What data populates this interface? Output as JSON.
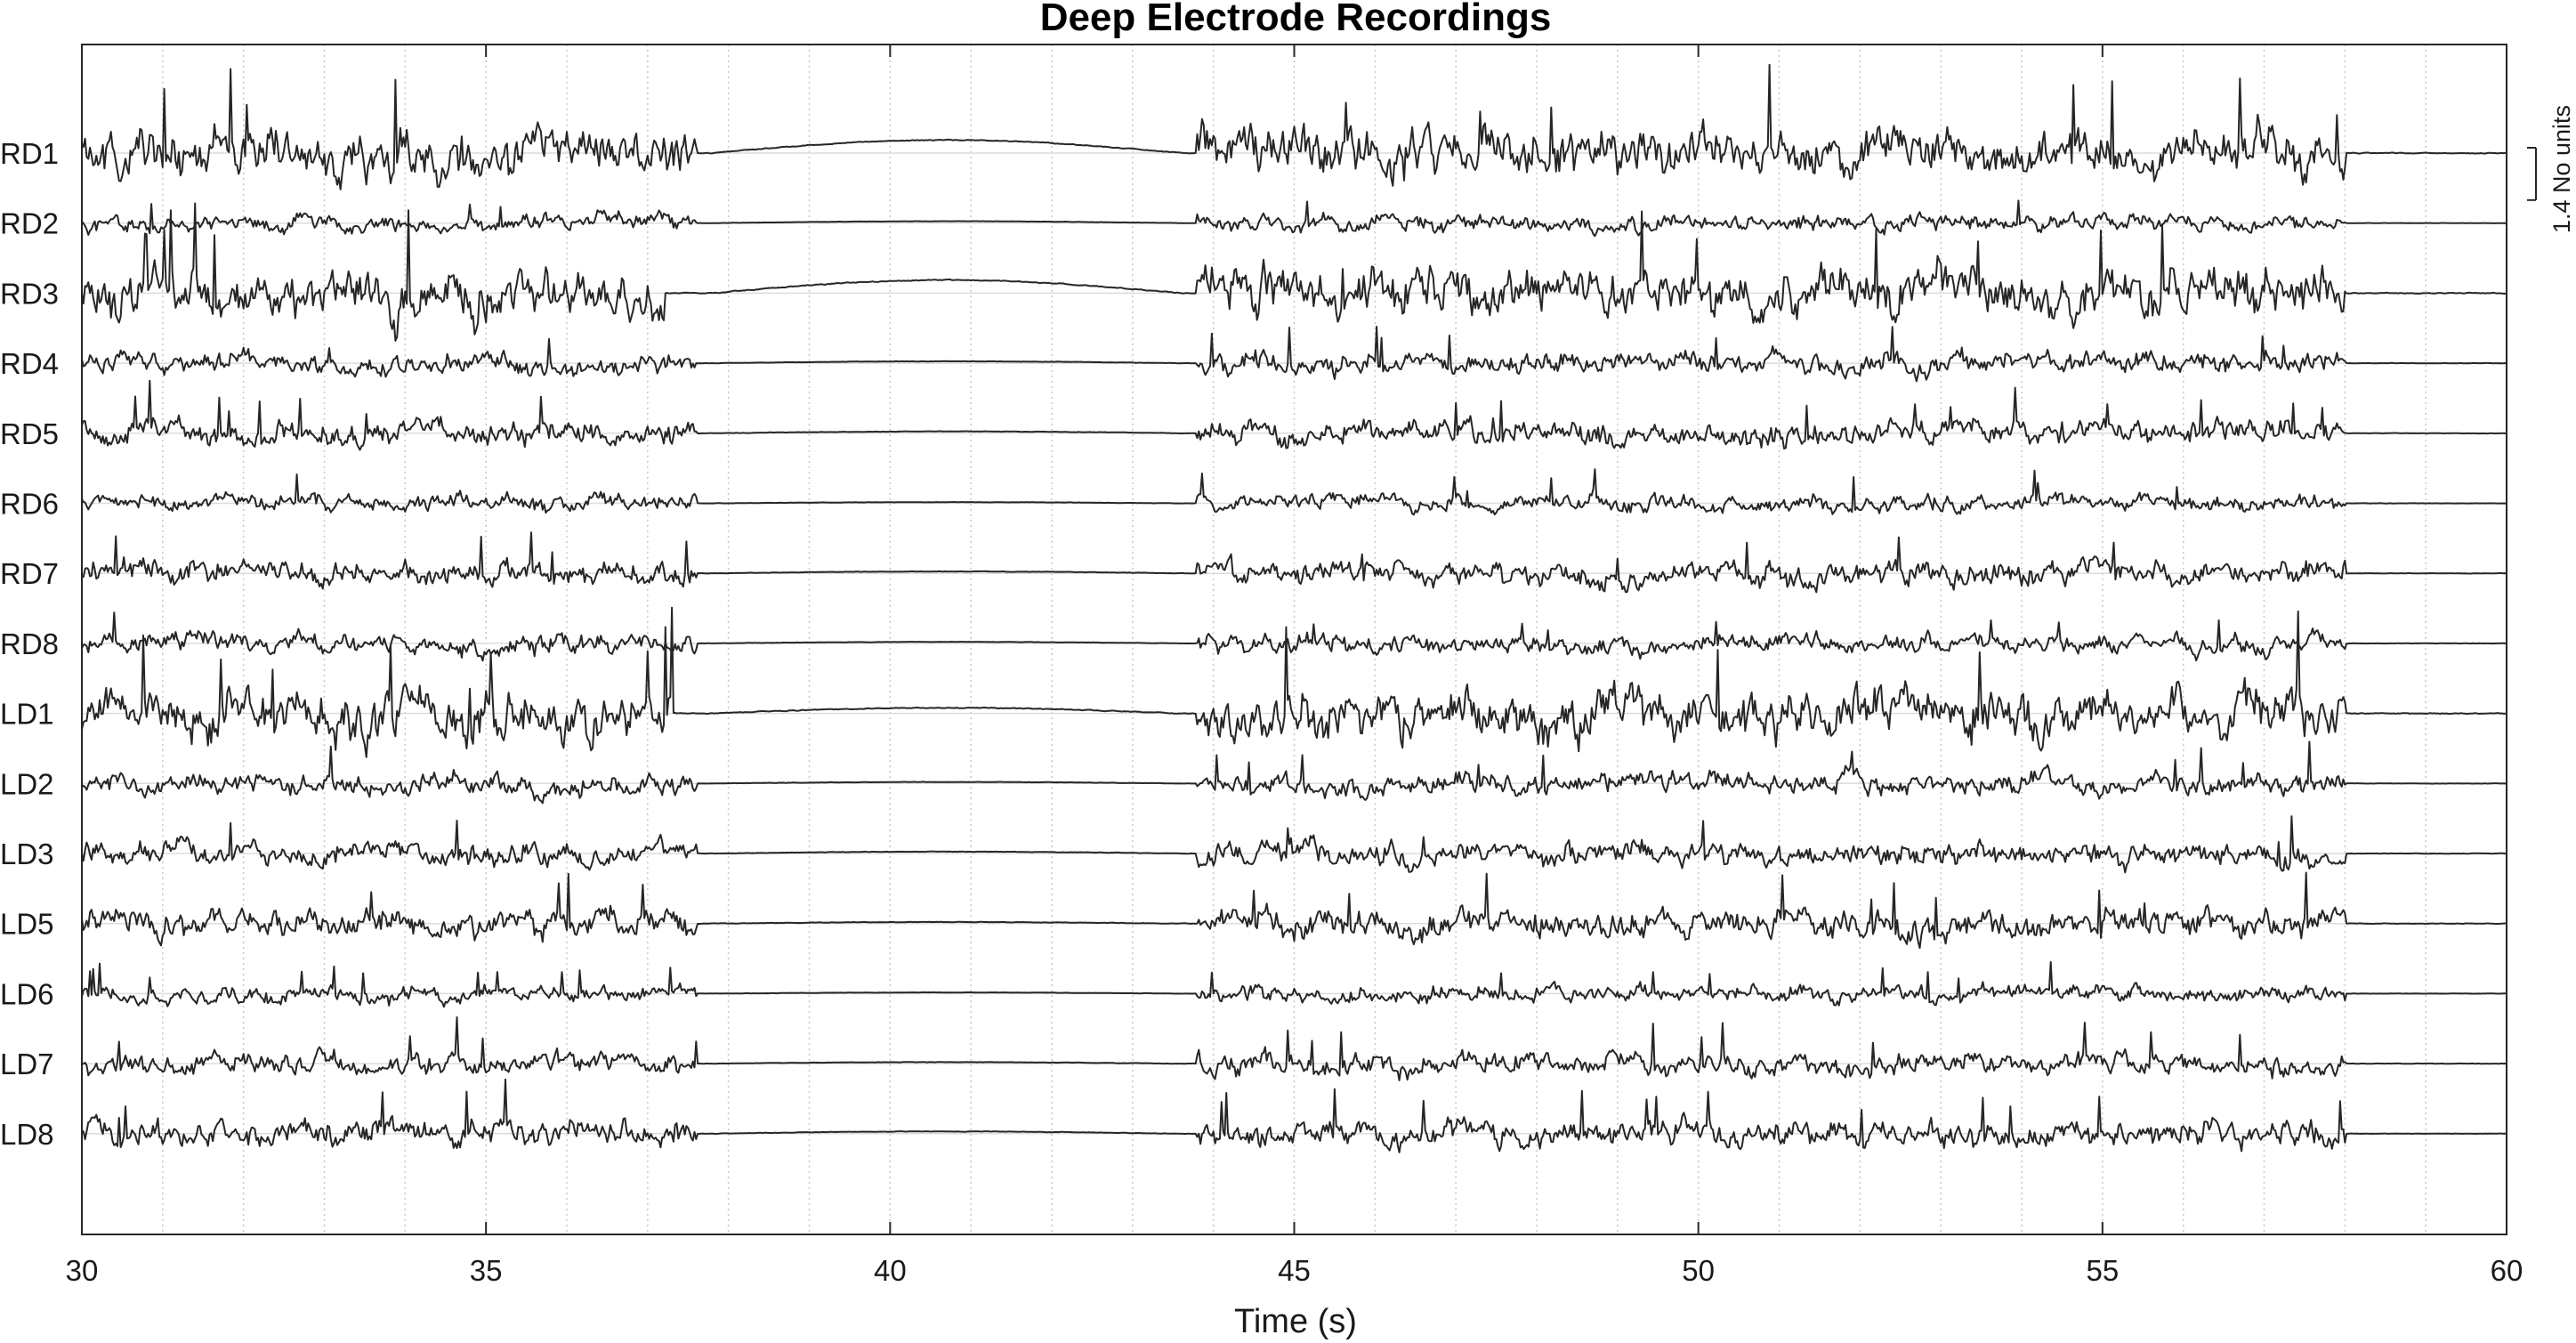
{
  "chart_data": {
    "type": "line",
    "title": "Deep Electrode Recordings",
    "xlabel": "Time (s)",
    "ylabel": "",
    "xlim": [
      30,
      60
    ],
    "x_ticks": [
      30,
      35,
      40,
      45,
      50,
      55,
      60
    ],
    "x_tick_labels": [
      "30",
      "35",
      "40",
      "45",
      "50",
      "55",
      "60"
    ],
    "minor_grid_step_s": 1,
    "grid": true,
    "line_color": "#262626",
    "scale_bar": {
      "value": 1.4,
      "label": "1.4 No units"
    },
    "channels": [
      "RD1",
      "RD2",
      "RD3",
      "RD4",
      "RD5",
      "RD6",
      "RD7",
      "RD8",
      "LD1",
      "LD2",
      "LD3",
      "LD5",
      "LD6",
      "LD7",
      "LD8"
    ],
    "series": [
      {
        "name": "RD1",
        "amplitude": 1.0,
        "bursts": [
          [
            30,
            37.6
          ],
          [
            43.8,
            58.0
          ]
        ],
        "quiet_bump": 0.35
      },
      {
        "name": "RD2",
        "amplitude": 0.35,
        "bursts": [
          [
            30,
            37.6
          ],
          [
            43.8,
            58.0
          ]
        ],
        "quiet_bump": 0.05
      },
      {
        "name": "RD3",
        "amplitude": 1.0,
        "bursts": [
          [
            30,
            37.2
          ],
          [
            43.8,
            58.0
          ]
        ],
        "quiet_bump": 0.35
      },
      {
        "name": "RD4",
        "amplitude": 0.45,
        "bursts": [
          [
            30,
            37.6
          ],
          [
            43.8,
            58.0
          ]
        ],
        "quiet_bump": 0.05
      },
      {
        "name": "RD5",
        "amplitude": 0.5,
        "bursts": [
          [
            30,
            37.6
          ],
          [
            43.8,
            58.0
          ]
        ],
        "quiet_bump": 0.05
      },
      {
        "name": "RD6",
        "amplitude": 0.35,
        "bursts": [
          [
            30,
            37.6
          ],
          [
            43.8,
            58.0
          ]
        ],
        "quiet_bump": 0.03
      },
      {
        "name": "RD7",
        "amplitude": 0.5,
        "bursts": [
          [
            30,
            37.6
          ],
          [
            43.8,
            58.0
          ]
        ],
        "quiet_bump": 0.05
      },
      {
        "name": "RD8",
        "amplitude": 0.4,
        "bursts": [
          [
            30,
            37.6
          ],
          [
            43.8,
            58.0
          ]
        ],
        "quiet_bump": 0.04
      },
      {
        "name": "LD1",
        "amplitude": 1.0,
        "bursts": [
          [
            30,
            37.3
          ],
          [
            43.8,
            58.0
          ]
        ],
        "quiet_bump": 0.15
      },
      {
        "name": "LD2",
        "amplitude": 0.45,
        "bursts": [
          [
            30,
            37.6
          ],
          [
            43.8,
            58.0
          ]
        ],
        "quiet_bump": 0.04
      },
      {
        "name": "LD3",
        "amplitude": 0.5,
        "bursts": [
          [
            30,
            37.6
          ],
          [
            43.8,
            58.0
          ]
        ],
        "quiet_bump": 0.05
      },
      {
        "name": "LD5",
        "amplitude": 0.6,
        "bursts": [
          [
            30,
            37.6
          ],
          [
            43.8,
            58.0
          ]
        ],
        "quiet_bump": 0.04
      },
      {
        "name": "LD6",
        "amplitude": 0.35,
        "bursts": [
          [
            30,
            37.6
          ],
          [
            43.8,
            58.0
          ]
        ],
        "quiet_bump": 0.03
      },
      {
        "name": "LD7",
        "amplitude": 0.45,
        "bursts": [
          [
            30,
            37.6
          ],
          [
            43.8,
            58.0
          ]
        ],
        "quiet_bump": 0.04
      },
      {
        "name": "LD8",
        "amplitude": 0.55,
        "bursts": [
          [
            30,
            37.6
          ],
          [
            43.8,
            58.0
          ]
        ],
        "quiet_bump": 0.06
      }
    ]
  }
}
